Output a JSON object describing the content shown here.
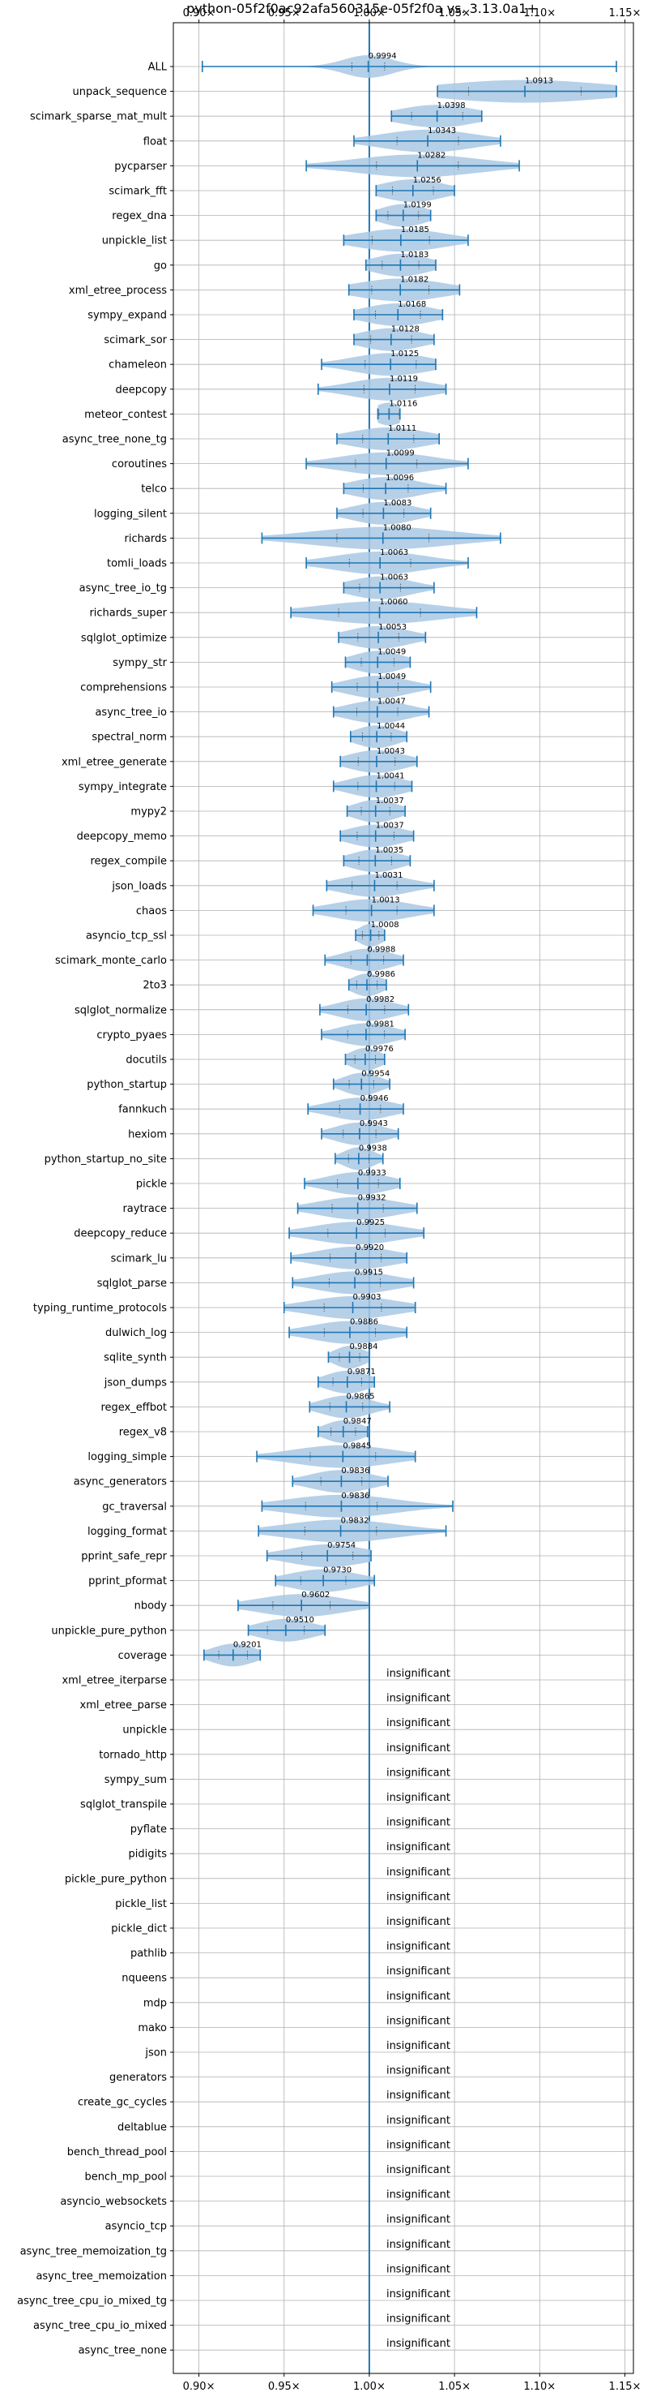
{
  "chart_data": {
    "type": "violin",
    "title": "python-05f2f0ac92afa560315e-05f2f0a vs. 3.13.0a1+",
    "xlim": [
      0.885,
      1.155
    ],
    "x_ticks": [
      0.9,
      0.95,
      1.0,
      1.05,
      1.1,
      1.15
    ],
    "x_tick_labels": [
      "0.90×",
      "0.95×",
      "1.00×",
      "1.05×",
      "1.10×",
      "1.15×"
    ],
    "reference_line": 1.0,
    "grid": true,
    "colors": {
      "violin": "#a9c8e4",
      "line": "#1f77b4"
    },
    "insignificant_label": "insignificant",
    "benchmarks": [
      {
        "name": "ALL",
        "value": 0.9994,
        "label": "0.9994",
        "min": 0.902,
        "max": 1.145,
        "spread": 0.016
      },
      {
        "name": "unpack_sequence",
        "value": 1.0913,
        "label": "1.0913",
        "min": 1.04,
        "max": 1.145,
        "spread": 0.055
      },
      {
        "name": "scimark_sparse_mat_mult",
        "value": 1.0398,
        "label": "1.0398",
        "min": 1.013,
        "max": 1.066,
        "spread": 0.025
      },
      {
        "name": "float",
        "value": 1.0343,
        "label": "1.0343",
        "min": 0.991,
        "max": 1.077,
        "spread": 0.03
      },
      {
        "name": "pycparser",
        "value": 1.0282,
        "label": "1.0282",
        "min": 0.963,
        "max": 1.088,
        "spread": 0.04
      },
      {
        "name": "scimark_fft",
        "value": 1.0256,
        "label": "1.0256",
        "min": 1.004,
        "max": 1.05,
        "spread": 0.02
      },
      {
        "name": "regex_dna",
        "value": 1.0199,
        "label": "1.0199",
        "min": 1.004,
        "max": 1.036,
        "spread": 0.015
      },
      {
        "name": "unpickle_list",
        "value": 1.0185,
        "label": "1.0185",
        "min": 0.985,
        "max": 1.058,
        "spread": 0.028
      },
      {
        "name": "go",
        "value": 1.0183,
        "label": "1.0183",
        "min": 0.998,
        "max": 1.039,
        "spread": 0.018
      },
      {
        "name": "xml_etree_process",
        "value": 1.0182,
        "label": "1.0182",
        "min": 0.988,
        "max": 1.053,
        "spread": 0.028
      },
      {
        "name": "sympy_expand",
        "value": 1.0168,
        "label": "1.0168",
        "min": 0.991,
        "max": 1.043,
        "spread": 0.022
      },
      {
        "name": "scimark_sor",
        "value": 1.0128,
        "label": "1.0128",
        "min": 0.991,
        "max": 1.038,
        "spread": 0.02
      },
      {
        "name": "chameleon",
        "value": 1.0125,
        "label": "1.0125",
        "min": 0.972,
        "max": 1.039,
        "spread": 0.025
      },
      {
        "name": "deepcopy",
        "value": 1.0119,
        "label": "1.0119",
        "min": 0.97,
        "max": 1.045,
        "spread": 0.025
      },
      {
        "name": "meteor_contest",
        "value": 1.0116,
        "label": "1.0116",
        "min": 1.005,
        "max": 1.018,
        "spread": 0.01
      },
      {
        "name": "async_tree_none_tg",
        "value": 1.0111,
        "label": "1.0111",
        "min": 0.981,
        "max": 1.041,
        "spread": 0.025
      },
      {
        "name": "coroutines",
        "value": 1.0099,
        "label": "1.0099",
        "min": 0.963,
        "max": 1.058,
        "spread": 0.03
      },
      {
        "name": "telco",
        "value": 1.0096,
        "label": "1.0096",
        "min": 0.985,
        "max": 1.045,
        "spread": 0.022
      },
      {
        "name": "logging_silent",
        "value": 1.0083,
        "label": "1.0083",
        "min": 0.981,
        "max": 1.036,
        "spread": 0.02
      },
      {
        "name": "richards",
        "value": 1.008,
        "label": "1.0080",
        "min": 0.937,
        "max": 1.077,
        "spread": 0.045
      },
      {
        "name": "tomli_loads",
        "value": 1.0063,
        "label": "1.0063",
        "min": 0.963,
        "max": 1.058,
        "spread": 0.03
      },
      {
        "name": "async_tree_io_tg",
        "value": 1.0063,
        "label": "1.0063",
        "min": 0.985,
        "max": 1.038,
        "spread": 0.02
      },
      {
        "name": "richards_super",
        "value": 1.006,
        "label": "1.0060",
        "min": 0.954,
        "max": 1.063,
        "spread": 0.04
      },
      {
        "name": "sqlglot_optimize",
        "value": 1.0053,
        "label": "1.0053",
        "min": 0.982,
        "max": 1.033,
        "spread": 0.02
      },
      {
        "name": "sympy_str",
        "value": 1.0049,
        "label": "1.0049",
        "min": 0.986,
        "max": 1.024,
        "spread": 0.016
      },
      {
        "name": "comprehensions",
        "value": 1.0049,
        "label": "1.0049",
        "min": 0.978,
        "max": 1.036,
        "spread": 0.02
      },
      {
        "name": "async_tree_io",
        "value": 1.0047,
        "label": "1.0047",
        "min": 0.979,
        "max": 1.035,
        "spread": 0.02
      },
      {
        "name": "spectral_norm",
        "value": 1.0044,
        "label": "1.0044",
        "min": 0.989,
        "max": 1.022,
        "spread": 0.014
      },
      {
        "name": "xml_etree_generate",
        "value": 1.0043,
        "label": "1.0043",
        "min": 0.983,
        "max": 1.028,
        "spread": 0.018
      },
      {
        "name": "sympy_integrate",
        "value": 1.0041,
        "label": "1.0041",
        "min": 0.979,
        "max": 1.025,
        "spread": 0.018
      },
      {
        "name": "mypy2",
        "value": 1.0037,
        "label": "1.0037",
        "min": 0.987,
        "max": 1.021,
        "spread": 0.014
      },
      {
        "name": "deepcopy_memo",
        "value": 1.0037,
        "label": "1.0037",
        "min": 0.983,
        "max": 1.026,
        "spread": 0.018
      },
      {
        "name": "regex_compile",
        "value": 1.0035,
        "label": "1.0035",
        "min": 0.985,
        "max": 1.024,
        "spread": 0.016
      },
      {
        "name": "json_loads",
        "value": 1.0031,
        "label": "1.0031",
        "min": 0.975,
        "max": 1.038,
        "spread": 0.022
      },
      {
        "name": "chaos",
        "value": 1.0013,
        "label": "1.0013",
        "min": 0.967,
        "max": 1.038,
        "spread": 0.025
      },
      {
        "name": "asyncio_tcp_ssl",
        "value": 1.0008,
        "label": "1.0008",
        "min": 0.992,
        "max": 1.009,
        "spread": 0.008
      },
      {
        "name": "scimark_monte_carlo",
        "value": 0.9988,
        "label": "0.9988",
        "min": 0.974,
        "max": 1.02,
        "spread": 0.016
      },
      {
        "name": "2to3",
        "value": 0.9986,
        "label": "0.9986",
        "min": 0.988,
        "max": 1.01,
        "spread": 0.01
      },
      {
        "name": "sqlglot_normalize",
        "value": 0.9982,
        "label": "0.9982",
        "min": 0.971,
        "max": 1.023,
        "spread": 0.018
      },
      {
        "name": "crypto_pyaes",
        "value": 0.9981,
        "label": "0.9981",
        "min": 0.972,
        "max": 1.021,
        "spread": 0.018
      },
      {
        "name": "docutils",
        "value": 0.9976,
        "label": "0.9976",
        "min": 0.986,
        "max": 1.009,
        "spread": 0.01
      },
      {
        "name": "python_startup",
        "value": 0.9954,
        "label": "0.9954",
        "min": 0.979,
        "max": 1.012,
        "spread": 0.012
      },
      {
        "name": "fannkuch",
        "value": 0.9946,
        "label": "0.9946",
        "min": 0.964,
        "max": 1.02,
        "spread": 0.02
      },
      {
        "name": "hexiom",
        "value": 0.9943,
        "label": "0.9943",
        "min": 0.972,
        "max": 1.017,
        "spread": 0.016
      },
      {
        "name": "python_startup_no_site",
        "value": 0.9938,
        "label": "0.9938",
        "min": 0.98,
        "max": 1.008,
        "spread": 0.01
      },
      {
        "name": "pickle",
        "value": 0.9933,
        "label": "0.9933",
        "min": 0.962,
        "max": 1.018,
        "spread": 0.02
      },
      {
        "name": "raytrace",
        "value": 0.9932,
        "label": "0.9932",
        "min": 0.958,
        "max": 1.028,
        "spread": 0.025
      },
      {
        "name": "deepcopy_reduce",
        "value": 0.9925,
        "label": "0.9925",
        "min": 0.953,
        "max": 1.032,
        "spread": 0.028
      },
      {
        "name": "scimark_lu",
        "value": 0.992,
        "label": "0.9920",
        "min": 0.954,
        "max": 1.022,
        "spread": 0.025
      },
      {
        "name": "sqlglot_parse",
        "value": 0.9915,
        "label": "0.9915",
        "min": 0.955,
        "max": 1.026,
        "spread": 0.025
      },
      {
        "name": "typing_runtime_protocols",
        "value": 0.9903,
        "label": "0.9903",
        "min": 0.95,
        "max": 1.027,
        "spread": 0.028
      },
      {
        "name": "dulwich_log",
        "value": 0.9886,
        "label": "0.9886",
        "min": 0.953,
        "max": 1.022,
        "spread": 0.025
      },
      {
        "name": "sqlite_synth",
        "value": 0.9884,
        "label": "0.9884",
        "min": 0.976,
        "max": 1.0,
        "spread": 0.01
      },
      {
        "name": "json_dumps",
        "value": 0.9871,
        "label": "0.9871",
        "min": 0.97,
        "max": 1.003,
        "spread": 0.014
      },
      {
        "name": "regex_effbot",
        "value": 0.9865,
        "label": "0.9865",
        "min": 0.965,
        "max": 1.012,
        "spread": 0.016
      },
      {
        "name": "regex_v8",
        "value": 0.9847,
        "label": "0.9847",
        "min": 0.97,
        "max": 0.999,
        "spread": 0.012
      },
      {
        "name": "logging_simple",
        "value": 0.9845,
        "label": "0.9845",
        "min": 0.934,
        "max": 1.027,
        "spread": 0.032
      },
      {
        "name": "async_generators",
        "value": 0.9836,
        "label": "0.9836",
        "min": 0.955,
        "max": 1.011,
        "spread": 0.02
      },
      {
        "name": "gc_traversal",
        "value": 0.9836,
        "label": "0.9836",
        "min": 0.937,
        "max": 1.049,
        "spread": 0.035
      },
      {
        "name": "logging_format",
        "value": 0.9832,
        "label": "0.9832",
        "min": 0.935,
        "max": 1.045,
        "spread": 0.035
      },
      {
        "name": "pprint_safe_repr",
        "value": 0.9754,
        "label": "0.9754",
        "min": 0.94,
        "max": 1.001,
        "spread": 0.025
      },
      {
        "name": "pprint_pformat",
        "value": 0.973,
        "label": "0.9730",
        "min": 0.945,
        "max": 1.003,
        "spread": 0.022
      },
      {
        "name": "nbody",
        "value": 0.9602,
        "label": "0.9602",
        "min": 0.923,
        "max": 1.0,
        "spread": 0.028
      },
      {
        "name": "unpickle_pure_python",
        "value": 0.951,
        "label": "0.9510",
        "min": 0.929,
        "max": 0.974,
        "spread": 0.018
      },
      {
        "name": "coverage",
        "value": 0.9201,
        "label": "0.9201",
        "min": 0.903,
        "max": 0.936,
        "spread": 0.014
      },
      {
        "name": "xml_etree_iterparse",
        "insignificant": true
      },
      {
        "name": "xml_etree_parse",
        "insignificant": true
      },
      {
        "name": "unpickle",
        "insignificant": true
      },
      {
        "name": "tornado_http",
        "insignificant": true
      },
      {
        "name": "sympy_sum",
        "insignificant": true
      },
      {
        "name": "sqlglot_transpile",
        "insignificant": true
      },
      {
        "name": "pyflate",
        "insignificant": true
      },
      {
        "name": "pidigits",
        "insignificant": true
      },
      {
        "name": "pickle_pure_python",
        "insignificant": true
      },
      {
        "name": "pickle_list",
        "insignificant": true
      },
      {
        "name": "pickle_dict",
        "insignificant": true
      },
      {
        "name": "pathlib",
        "insignificant": true
      },
      {
        "name": "nqueens",
        "insignificant": true
      },
      {
        "name": "mdp",
        "insignificant": true
      },
      {
        "name": "mako",
        "insignificant": true
      },
      {
        "name": "json",
        "insignificant": true
      },
      {
        "name": "generators",
        "insignificant": true
      },
      {
        "name": "create_gc_cycles",
        "insignificant": true
      },
      {
        "name": "deltablue",
        "insignificant": true
      },
      {
        "name": "bench_thread_pool",
        "insignificant": true
      },
      {
        "name": "bench_mp_pool",
        "insignificant": true
      },
      {
        "name": "asyncio_websockets",
        "insignificant": true
      },
      {
        "name": "asyncio_tcp",
        "insignificant": true
      },
      {
        "name": "async_tree_memoization_tg",
        "insignificant": true
      },
      {
        "name": "async_tree_memoization",
        "insignificant": true
      },
      {
        "name": "async_tree_cpu_io_mixed_tg",
        "insignificant": true
      },
      {
        "name": "async_tree_cpu_io_mixed",
        "insignificant": true
      },
      {
        "name": "async_tree_none",
        "insignificant": true
      }
    ]
  }
}
